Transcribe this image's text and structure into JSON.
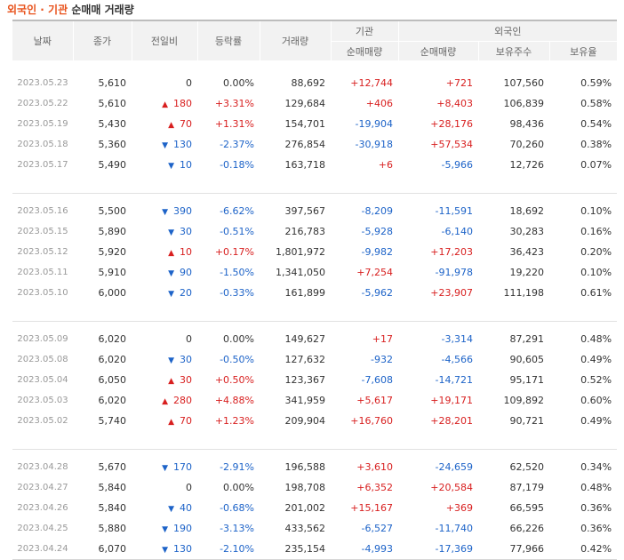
{
  "title": {
    "part1": "외국인",
    "sep": " · ",
    "part2": "기관",
    "part3": "순매매 거래량"
  },
  "colors": {
    "up": "#d81f1f",
    "down": "#1d63c8",
    "title_accent": "#e8511a"
  },
  "headers": {
    "date": "날짜",
    "close": "종가",
    "change": "전일비",
    "rate": "등락률",
    "volume": "거래량",
    "institution": "기관",
    "inst_net": "순매매량",
    "foreign": "외국인",
    "foreign_net": "순매매량",
    "holdings": "보유주수",
    "ratio": "보유율"
  },
  "groups": [
    [
      {
        "date": "2023.05.23",
        "close": "5,610",
        "dir": "none",
        "change": "0",
        "rate": "0.00%",
        "volume": "88,692",
        "inst": "+12,744",
        "foreign": "+721",
        "holdings": "107,560",
        "ratio": "0.59%"
      },
      {
        "date": "2023.05.22",
        "close": "5,610",
        "dir": "up",
        "change": "180",
        "rate": "+3.31%",
        "volume": "129,684",
        "inst": "+406",
        "foreign": "+8,403",
        "holdings": "106,839",
        "ratio": "0.58%"
      },
      {
        "date": "2023.05.19",
        "close": "5,430",
        "dir": "up",
        "change": "70",
        "rate": "+1.31%",
        "volume": "154,701",
        "inst": "-19,904",
        "foreign": "+28,176",
        "holdings": "98,436",
        "ratio": "0.54%"
      },
      {
        "date": "2023.05.18",
        "close": "5,360",
        "dir": "down",
        "change": "130",
        "rate": "-2.37%",
        "volume": "276,854",
        "inst": "-30,918",
        "foreign": "+57,534",
        "holdings": "70,260",
        "ratio": "0.38%"
      },
      {
        "date": "2023.05.17",
        "close": "5,490",
        "dir": "down",
        "change": "10",
        "rate": "-0.18%",
        "volume": "163,718",
        "inst": "+6",
        "foreign": "-5,966",
        "holdings": "12,726",
        "ratio": "0.07%"
      }
    ],
    [
      {
        "date": "2023.05.16",
        "close": "5,500",
        "dir": "down",
        "change": "390",
        "rate": "-6.62%",
        "volume": "397,567",
        "inst": "-8,209",
        "foreign": "-11,591",
        "holdings": "18,692",
        "ratio": "0.10%"
      },
      {
        "date": "2023.05.15",
        "close": "5,890",
        "dir": "down",
        "change": "30",
        "rate": "-0.51%",
        "volume": "216,783",
        "inst": "-5,928",
        "foreign": "-6,140",
        "holdings": "30,283",
        "ratio": "0.16%"
      },
      {
        "date": "2023.05.12",
        "close": "5,920",
        "dir": "up",
        "change": "10",
        "rate": "+0.17%",
        "volume": "1,801,972",
        "inst": "-9,982",
        "foreign": "+17,203",
        "holdings": "36,423",
        "ratio": "0.20%"
      },
      {
        "date": "2023.05.11",
        "close": "5,910",
        "dir": "down",
        "change": "90",
        "rate": "-1.50%",
        "volume": "1,341,050",
        "inst": "+7,254",
        "foreign": "-91,978",
        "holdings": "19,220",
        "ratio": "0.10%"
      },
      {
        "date": "2023.05.10",
        "close": "6,000",
        "dir": "down",
        "change": "20",
        "rate": "-0.33%",
        "volume": "161,899",
        "inst": "-5,962",
        "foreign": "+23,907",
        "holdings": "111,198",
        "ratio": "0.61%"
      }
    ],
    [
      {
        "date": "2023.05.09",
        "close": "6,020",
        "dir": "none",
        "change": "0",
        "rate": "0.00%",
        "volume": "149,627",
        "inst": "+17",
        "foreign": "-3,314",
        "holdings": "87,291",
        "ratio": "0.48%"
      },
      {
        "date": "2023.05.08",
        "close": "6,020",
        "dir": "down",
        "change": "30",
        "rate": "-0.50%",
        "volume": "127,632",
        "inst": "-932",
        "foreign": "-4,566",
        "holdings": "90,605",
        "ratio": "0.49%"
      },
      {
        "date": "2023.05.04",
        "close": "6,050",
        "dir": "up",
        "change": "30",
        "rate": "+0.50%",
        "volume": "123,367",
        "inst": "-7,608",
        "foreign": "-14,721",
        "holdings": "95,171",
        "ratio": "0.52%"
      },
      {
        "date": "2023.05.03",
        "close": "6,020",
        "dir": "up",
        "change": "280",
        "rate": "+4.88%",
        "volume": "341,959",
        "inst": "+5,617",
        "foreign": "+19,171",
        "holdings": "109,892",
        "ratio": "0.60%"
      },
      {
        "date": "2023.05.02",
        "close": "5,740",
        "dir": "up",
        "change": "70",
        "rate": "+1.23%",
        "volume": "209,904",
        "inst": "+16,760",
        "foreign": "+28,201",
        "holdings": "90,721",
        "ratio": "0.49%"
      }
    ],
    [
      {
        "date": "2023.04.28",
        "close": "5,670",
        "dir": "down",
        "change": "170",
        "rate": "-2.91%",
        "volume": "196,588",
        "inst": "+3,610",
        "foreign": "-24,659",
        "holdings": "62,520",
        "ratio": "0.34%"
      },
      {
        "date": "2023.04.27",
        "close": "5,840",
        "dir": "none",
        "change": "0",
        "rate": "0.00%",
        "volume": "198,708",
        "inst": "+6,352",
        "foreign": "+20,584",
        "holdings": "87,179",
        "ratio": "0.48%"
      },
      {
        "date": "2023.04.26",
        "close": "5,840",
        "dir": "down",
        "change": "40",
        "rate": "-0.68%",
        "volume": "201,002",
        "inst": "+15,167",
        "foreign": "+369",
        "holdings": "66,595",
        "ratio": "0.36%"
      },
      {
        "date": "2023.04.25",
        "close": "5,880",
        "dir": "down",
        "change": "190",
        "rate": "-3.13%",
        "volume": "433,562",
        "inst": "-6,527",
        "foreign": "-11,740",
        "holdings": "66,226",
        "ratio": "0.36%"
      },
      {
        "date": "2023.04.24",
        "close": "6,070",
        "dir": "down",
        "change": "130",
        "rate": "-2.10%",
        "volume": "235,154",
        "inst": "-4,993",
        "foreign": "-17,369",
        "holdings": "77,966",
        "ratio": "0.42%"
      }
    ]
  ]
}
